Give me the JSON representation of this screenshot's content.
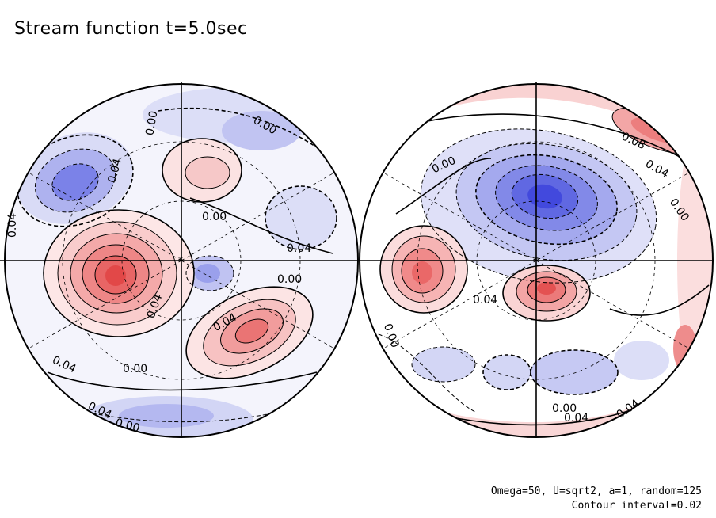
{
  "title": "Stream function t=5.0sec",
  "parameters": "Omega=50, U=sqrt2, a=1, random=125",
  "contour_interval": "Contour interval=0.02",
  "colors": {
    "positive": "#e85a5a",
    "positive_light": "#f8d4d4",
    "negative": "#5a62e6",
    "negative_light": "#d6d8f7",
    "contour": "#000000"
  },
  "hemispheres": [
    {
      "name": "left",
      "contour_labels": [
        "0.00",
        "0.04",
        "0.00",
        "0.00",
        "0.04",
        "0.00",
        "0.04",
        "0.04",
        "0.00",
        "0.04",
        "0.04",
        "0.00",
        "0.04"
      ]
    },
    {
      "name": "right",
      "contour_labels": [
        "0.00",
        "0.08",
        "0.04",
        "0.00",
        "0.04",
        "0.00",
        "0.00",
        "0.04",
        "0.04"
      ]
    }
  ]
}
